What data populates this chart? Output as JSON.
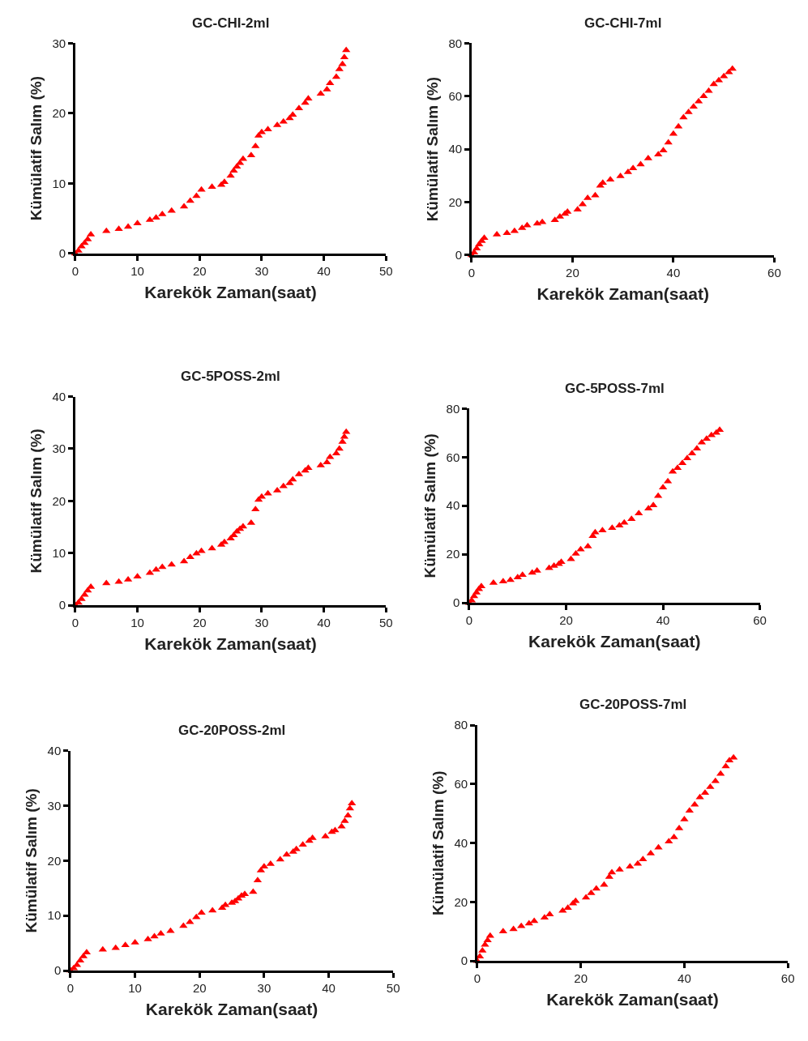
{
  "chart_data": [
    {
      "type": "scatter",
      "title": "GC-CHI-2ml",
      "xlabel": "Karekök Zaman(saat)",
      "ylabel": "Kümülatif Salım (%)",
      "color": "#ff0000",
      "marker": "triangle",
      "xlim": [
        0,
        50
      ],
      "ylim": [
        0,
        30
      ],
      "xticks": [
        0,
        10,
        20,
        30,
        40,
        50
      ],
      "yticks": [
        0,
        10,
        20,
        30
      ],
      "x": [
        0,
        0.5,
        1,
        1.5,
        2,
        2.5,
        5,
        7,
        8.5,
        10,
        12,
        13,
        14,
        15.5,
        17.5,
        18.5,
        19.5,
        20.3,
        22,
        23.5,
        24,
        25,
        25.5,
        26,
        26.5,
        27,
        28.3,
        29,
        29.5,
        30,
        31,
        32.5,
        33.5,
        34.5,
        35,
        36,
        37,
        37.5,
        39.5,
        40.5,
        41,
        42,
        42.5,
        43,
        43.3,
        43.6
      ],
      "values": [
        0,
        0.4,
        1,
        1.5,
        2,
        2.7,
        3.2,
        3.5,
        3.8,
        4.3,
        4.8,
        5.1,
        5.6,
        6.1,
        6.7,
        7.5,
        8.2,
        9.1,
        9.5,
        9.8,
        10.2,
        11.1,
        11.8,
        12.4,
        12.9,
        13.5,
        14,
        15.3,
        16.8,
        17.3,
        17.7,
        18.3,
        18.8,
        19.3,
        19.8,
        20.7,
        21.5,
        22.1,
        22.8,
        23.4,
        24.3,
        25.2,
        26.3,
        27,
        28,
        29
      ]
    },
    {
      "type": "scatter",
      "title": "GC-CHI-7ml",
      "xlabel": "Karekök Zaman(saat)",
      "ylabel": "Kümülatif Salım (%)",
      "color": "#ff0000",
      "marker": "triangle",
      "xlim": [
        0,
        60
      ],
      "ylim": [
        0,
        80
      ],
      "xticks": [
        0,
        20,
        40,
        60
      ],
      "yticks": [
        0,
        20,
        40,
        60,
        80
      ],
      "x": [
        0,
        0.5,
        1,
        1.5,
        2,
        2.5,
        5,
        7,
        8.5,
        10,
        11,
        13,
        14,
        16.5,
        17.5,
        18.5,
        19,
        21,
        22,
        23,
        24.5,
        25.5,
        26,
        27.5,
        29.5,
        31,
        32,
        33.5,
        35,
        37,
        38,
        39,
        40,
        41,
        42,
        43,
        44,
        45,
        46,
        47,
        48,
        49,
        50,
        51,
        51.7
      ],
      "values": [
        0,
        1,
        2.5,
        4,
        5.3,
        6.5,
        7.8,
        8.3,
        9.1,
        10.2,
        11.2,
        11.9,
        12.4,
        13.2,
        14.5,
        15.6,
        16.3,
        17.2,
        19.2,
        21.5,
        22.5,
        26.2,
        27.3,
        28.5,
        29.8,
        31.3,
        32.8,
        34.2,
        36.5,
        38,
        39.5,
        42.5,
        45.8,
        48.5,
        52,
        54,
        56,
        58,
        60,
        62,
        64.5,
        66,
        67.5,
        69,
        70.3
      ]
    },
    {
      "type": "scatter",
      "title": "GC-5POSS-2ml",
      "xlabel": "Karekök Zaman(saat)",
      "ylabel": "Kümülatif Salım (%)",
      "color": "#ff0000",
      "marker": "triangle",
      "xlim": [
        0,
        50
      ],
      "ylim": [
        0,
        40
      ],
      "xticks": [
        0,
        10,
        20,
        30,
        40,
        50
      ],
      "yticks": [
        0,
        10,
        20,
        30,
        40
      ],
      "x": [
        0,
        0.5,
        1,
        1.5,
        2,
        2.5,
        5,
        7,
        8.5,
        10,
        12,
        13,
        14,
        15.5,
        17.5,
        18.5,
        19.5,
        20.3,
        22,
        23.5,
        24,
        25,
        25.5,
        26,
        26.5,
        27,
        28.3,
        29,
        29.5,
        30,
        31,
        32.5,
        33.5,
        34.5,
        35,
        36,
        37,
        37.5,
        39.5,
        40.5,
        41,
        42,
        42.5,
        43,
        43.3,
        43.6
      ],
      "values": [
        0,
        0.5,
        1.2,
        2,
        2.8,
        3.5,
        4.2,
        4.5,
        4.9,
        5.5,
        6.2,
        6.8,
        7.3,
        7.8,
        8.4,
        9.2,
        9.9,
        10.4,
        10.9,
        11.6,
        12.1,
        12.8,
        13.4,
        14.1,
        14.6,
        15.1,
        15.8,
        18.4,
        20.2,
        20.8,
        21.4,
        22,
        22.8,
        23.4,
        24.1,
        25.1,
        25.8,
        26.3,
        26.8,
        27.4,
        28.4,
        29.1,
        30,
        31.3,
        32.3,
        33.2
      ]
    },
    {
      "type": "scatter",
      "title": "GC-5POSS-7ml",
      "xlabel": "Karekök Zaman(saat)",
      "ylabel": "Kümülatif Salım (%)",
      "color": "#ff0000",
      "marker": "triangle",
      "xlim": [
        0,
        60
      ],
      "ylim": [
        0,
        80
      ],
      "xticks": [
        0,
        20,
        40,
        60
      ],
      "yticks": [
        0,
        20,
        40,
        60,
        80
      ],
      "x": [
        0,
        0.5,
        1,
        1.5,
        2,
        2.5,
        5,
        7,
        8.5,
        10,
        11,
        13,
        14,
        16.5,
        17.5,
        18.5,
        19,
        21,
        22,
        23,
        24.5,
        25.5,
        26,
        27.5,
        29.5,
        31,
        32,
        33.5,
        35,
        37,
        38,
        39,
        40,
        41,
        42,
        43,
        44,
        45,
        46,
        47,
        48,
        49,
        50,
        51,
        51.7
      ],
      "values": [
        0,
        1,
        2.7,
        4.2,
        5.6,
        6.8,
        8.2,
        8.8,
        9.4,
        10.5,
        11.5,
        12.4,
        13.2,
        14.3,
        15.2,
        16,
        16.8,
        18,
        20.2,
        22,
        23.2,
        27.5,
        29,
        29.8,
        30.8,
        31.8,
        33,
        34.5,
        36.8,
        38.8,
        40.2,
        44,
        47.5,
        50,
        54,
        55.5,
        57.5,
        59.5,
        61.5,
        63.5,
        66,
        67.5,
        69,
        70,
        71.2
      ]
    },
    {
      "type": "scatter",
      "title": "GC-20POSS-2ml",
      "xlabel": "Karekök Zaman(saat)",
      "ylabel": "Kümülatif Salım (%)",
      "color": "#ff0000",
      "marker": "triangle",
      "xlim": [
        0,
        50
      ],
      "ylim": [
        0,
        40
      ],
      "xticks": [
        0,
        10,
        20,
        30,
        40,
        50
      ],
      "yticks": [
        0,
        10,
        20,
        30,
        40
      ],
      "x": [
        0,
        0.5,
        1,
        1.5,
        2,
        2.5,
        5,
        7,
        8.5,
        10,
        12,
        13,
        14,
        15.5,
        17.5,
        18.5,
        19.5,
        20.3,
        22,
        23.5,
        24,
        25,
        25.5,
        26,
        26.5,
        27,
        28.3,
        29,
        29.5,
        30,
        31,
        32.5,
        33.5,
        34.5,
        35,
        36,
        37,
        37.5,
        39.5,
        40.5,
        41,
        42,
        42.5,
        43,
        43.3,
        43.6
      ],
      "values": [
        0,
        0.4,
        1,
        1.8,
        2.6,
        3.3,
        3.8,
        4.1,
        4.6,
        5.1,
        5.7,
        6.2,
        6.7,
        7.2,
        8.1,
        8.8,
        9.7,
        10.5,
        10.9,
        11.4,
        11.9,
        12.3,
        12.6,
        13.1,
        13.6,
        13.9,
        14.3,
        16.4,
        18.2,
        18.9,
        19.4,
        20.2,
        21.1,
        21.6,
        22.1,
        22.9,
        23.6,
        24.1,
        24.4,
        25.2,
        25.5,
        26.2,
        27.2,
        28.2,
        29.5,
        30.4
      ]
    },
    {
      "type": "scatter",
      "title": "GC-20POSS-7ml",
      "xlabel": "Karekök Zaman(saat)",
      "ylabel": "Kümülatif Salım (%)",
      "color": "#ff0000",
      "marker": "triangle",
      "xlim": [
        0,
        60
      ],
      "ylim": [
        0,
        80
      ],
      "xticks": [
        0,
        20,
        40,
        60
      ],
      "yticks": [
        0,
        20,
        40,
        60,
        80
      ],
      "x": [
        0,
        0.5,
        1,
        1.5,
        2,
        2.5,
        5,
        7,
        8.5,
        10,
        11,
        13,
        14,
        16.5,
        17.5,
        18.5,
        19,
        21,
        22,
        23,
        24.5,
        25.5,
        26,
        27.5,
        29.5,
        31,
        32,
        33.5,
        35,
        37,
        38,
        39,
        40,
        41,
        42,
        43,
        44,
        45,
        46,
        47,
        48,
        48.7,
        49.5
      ],
      "values": [
        0,
        1.5,
        3.5,
        5.5,
        7,
        8.5,
        10,
        10.8,
        11.8,
        12.7,
        13.5,
        14.7,
        15.8,
        17,
        18,
        19.5,
        20.3,
        21.5,
        23,
        24.5,
        25.8,
        28.5,
        30,
        31,
        32,
        33,
        34.5,
        36.5,
        38.5,
        40.5,
        42,
        45,
        48,
        51,
        53,
        55.5,
        57,
        59,
        61,
        63.5,
        66,
        68,
        69
      ]
    }
  ]
}
